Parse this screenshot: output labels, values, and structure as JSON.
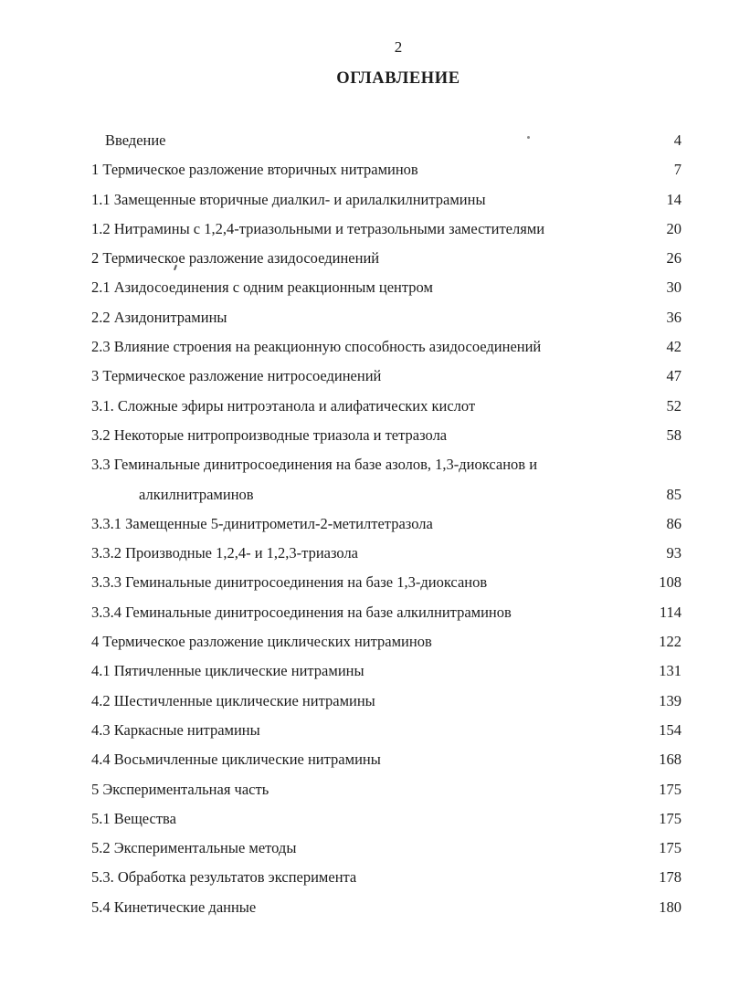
{
  "page": {
    "number": "2",
    "title": "ОГЛАВЛЕНИЕ"
  },
  "toc": {
    "entries": [
      {
        "label": "Введение",
        "page": "4"
      },
      {
        "label": "1 Термическое разложение вторичных нитраминов",
        "page": "7"
      },
      {
        "label": "1.1 Замещенные вторичные диалкил- и арилалкилнитрамины",
        "page": "14"
      },
      {
        "label": "1.2 Нитрамины с 1,2,4-триазольными и тетразольными заместителями",
        "page": "20"
      },
      {
        "label": "2 Термическое разложение азидосоединений",
        "page": "26"
      },
      {
        "label": "2.1 Азидосоединения с одним реакционным центром",
        "page": "30"
      },
      {
        "label": "2.2 Азидонитрамины",
        "page": "36"
      },
      {
        "label": "2.3 Влияние строения на реакционную способность азидосоединений",
        "page": "42"
      },
      {
        "label": "3 Термическое разложение нитросоединений",
        "page": "47"
      },
      {
        "label": "3.1. Сложные эфиры нитроэтанола и алифатических кислот",
        "page": "52"
      },
      {
        "label": "3.2 Некоторые нитропроизводные триазола и тетразола",
        "page": "58"
      },
      {
        "label": "3.3 Геминальные динитросоединения на базе азолов, 1,3-диоксанов и",
        "label2": "алкилнитраминов",
        "page": "85"
      },
      {
        "label": "3.3.1 Замещенные 5-динитрометил-2-метилтетразола",
        "page": "86"
      },
      {
        "label": "3.3.2 Производные 1,2,4- и 1,2,3-триазола",
        "page": "93"
      },
      {
        "label": "3.3.3 Геминальные динитросоединения на базе 1,3-диоксанов",
        "page": "108"
      },
      {
        "label": "3.3.4 Геминальные динитросоединения на базе алкилнитраминов",
        "page": "114"
      },
      {
        "label": "4 Термическое разложение циклических нитраминов",
        "page": "122"
      },
      {
        "label": "4.1 Пятичленные циклические нитрамины",
        "page": "131"
      },
      {
        "label": "4.2 Шестичленные циклические нитрамины",
        "page": "139"
      },
      {
        "label": "4.3 Каркасные нитрамины",
        "page": "154"
      },
      {
        "label": "4.4 Восьмичленные циклические нитрамины",
        "page": "168"
      },
      {
        "label": "5 Экспериментальная часть",
        "page": "175"
      },
      {
        "label": "5.1 Вещества",
        "page": "175"
      },
      {
        "label": "5.2 Экспериментальные методы",
        "page": "175"
      },
      {
        "label": "5.3. Обработка результатов эксперимента",
        "page": "178"
      },
      {
        "label": "5.4 Кинетические данные",
        "page": "180"
      }
    ]
  }
}
